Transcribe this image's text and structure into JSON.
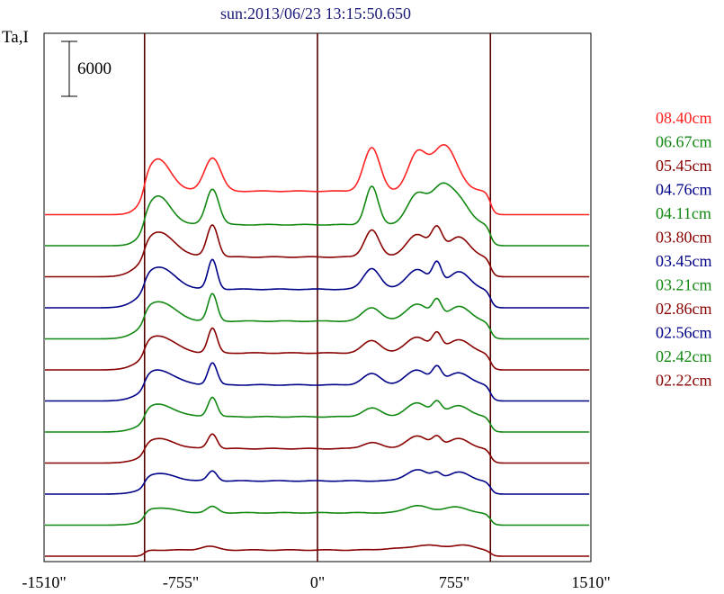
{
  "chart_data": {
    "type": "line",
    "title": "sun:2013/06/23 13:15:50.650",
    "ylabel": "Ta,I",
    "xlabel": "",
    "scale_bar_label": "6000",
    "scale_bar_value": 6000,
    "xlim": [
      -1510,
      1510
    ],
    "xticks": [
      -1510,
      -755,
      0,
      755,
      1510
    ],
    "xtick_labels": [
      "-1510\"",
      "-755\"",
      "0\"",
      "755\"",
      "1510\""
    ],
    "vlines": [
      -955,
      0,
      955
    ],
    "grid": false,
    "legend_position": "right",
    "colors": {
      "red": "#ff2222",
      "green": "#118811",
      "maroon": "#880000",
      "navy": "#000088",
      "title": "#1a1a7a",
      "vline": "#550000"
    },
    "series": [
      {
        "name": "02.22cm",
        "color": "#880000",
        "offset": 0,
        "peaks": [
          [
            -955,
            0,
            0,
            1
          ],
          [
            -600,
            900,
            45,
            1
          ],
          [
            0,
            0,
            0,
            1
          ],
          [
            400,
            300,
            60,
            1
          ],
          [
            600,
            1200,
            80,
            1
          ],
          [
            800,
            1200,
            60,
            1
          ]
        ],
        "base": 1500
      },
      {
        "name": "02.42cm",
        "color": "#118811",
        "offset": 1,
        "peaks": [
          [
            -880,
            1200,
            90,
            1
          ],
          [
            -580,
            1500,
            30,
            1
          ],
          [
            550,
            1800,
            60,
            1
          ],
          [
            755,
            1500,
            60,
            1
          ]
        ],
        "base": 3000
      },
      {
        "name": "02.56cm",
        "color": "#000088",
        "offset": 2,
        "peaks": [
          [
            -880,
            1800,
            90,
            1
          ],
          [
            -580,
            2400,
            25,
            1
          ],
          [
            550,
            2700,
            60,
            1
          ],
          [
            660,
            1500,
            25,
            1
          ],
          [
            780,
            2100,
            60,
            1
          ]
        ],
        "base": 3200
      },
      {
        "name": "02.86cm",
        "color": "#880000",
        "offset": 3,
        "peaks": [
          [
            -880,
            2400,
            90,
            1
          ],
          [
            -580,
            3600,
            25,
            1
          ],
          [
            300,
            1500,
            50,
            1
          ],
          [
            550,
            3000,
            60,
            1
          ],
          [
            660,
            2400,
            25,
            1
          ],
          [
            780,
            2400,
            60,
            1
          ]
        ],
        "base": 3500
      },
      {
        "name": "03.21cm",
        "color": "#118811",
        "offset": 4,
        "peaks": [
          [
            -880,
            3000,
            90,
            1
          ],
          [
            -580,
            4800,
            25,
            1
          ],
          [
            300,
            2100,
            50,
            1
          ],
          [
            550,
            3300,
            60,
            1
          ],
          [
            660,
            3000,
            25,
            1
          ],
          [
            780,
            2700,
            60,
            1
          ]
        ],
        "base": 3700
      },
      {
        "name": "03.45cm",
        "color": "#000088",
        "offset": 5,
        "peaks": [
          [
            -880,
            3600,
            90,
            1
          ],
          [
            -580,
            5400,
            25,
            1
          ],
          [
            300,
            2700,
            50,
            1
          ],
          [
            550,
            3600,
            60,
            1
          ],
          [
            660,
            3600,
            25,
            1
          ],
          [
            780,
            3000,
            60,
            1
          ]
        ],
        "base": 3900
      },
      {
        "name": "03.80cm",
        "color": "#880000",
        "offset": 6,
        "peaks": [
          [
            -880,
            4200,
            90,
            1
          ],
          [
            -580,
            6000,
            25,
            1
          ],
          [
            300,
            3000,
            50,
            1
          ],
          [
            550,
            3900,
            60,
            1
          ],
          [
            660,
            3900,
            25,
            1
          ],
          [
            780,
            3300,
            60,
            1
          ]
        ],
        "base": 4100
      },
      {
        "name": "04.11cm",
        "color": "#118811",
        "offset": 7,
        "peaks": [
          [
            -880,
            4800,
            90,
            1
          ],
          [
            -580,
            6600,
            25,
            1
          ],
          [
            300,
            3300,
            50,
            1
          ],
          [
            550,
            4200,
            60,
            1
          ],
          [
            660,
            4200,
            25,
            1
          ],
          [
            780,
            3600,
            60,
            1
          ]
        ],
        "base": 4300
      },
      {
        "name": "04.76cm",
        "color": "#000088",
        "offset": 8,
        "peaks": [
          [
            -880,
            5400,
            90,
            1
          ],
          [
            -580,
            7200,
            25,
            1
          ],
          [
            300,
            5100,
            45,
            1
          ],
          [
            550,
            4800,
            60,
            1
          ],
          [
            660,
            5400,
            25,
            1
          ],
          [
            780,
            4200,
            60,
            1
          ]
        ],
        "base": 4500
      },
      {
        "name": "05.45cm",
        "color": "#880000",
        "offset": 9,
        "peaks": [
          [
            -880,
            6000,
            90,
            1
          ],
          [
            -580,
            7800,
            30,
            1
          ],
          [
            300,
            6600,
            40,
            1
          ],
          [
            550,
            5400,
            60,
            1
          ],
          [
            660,
            6000,
            30,
            1
          ],
          [
            780,
            4800,
            60,
            1
          ]
        ],
        "base": 4800
      },
      {
        "name": "06.67cm",
        "color": "#118811",
        "offset": 10,
        "peaks": [
          [
            -880,
            6900,
            70,
            1
          ],
          [
            -580,
            8700,
            35,
            1
          ],
          [
            300,
            9300,
            35,
            1
          ],
          [
            550,
            7200,
            55,
            1
          ],
          [
            680,
            8100,
            55,
            1
          ],
          [
            780,
            5700,
            60,
            1
          ]
        ],
        "base": 5100
      },
      {
        "name": "08.40cm",
        "color": "#ff2222",
        "offset": 11,
        "peaks": [
          [
            -880,
            7800,
            70,
            1
          ],
          [
            -580,
            8100,
            45,
            1
          ],
          [
            300,
            10500,
            45,
            1
          ],
          [
            550,
            8700,
            50,
            1
          ],
          [
            700,
            11100,
            70,
            1
          ]
        ],
        "base": 5700
      }
    ]
  }
}
